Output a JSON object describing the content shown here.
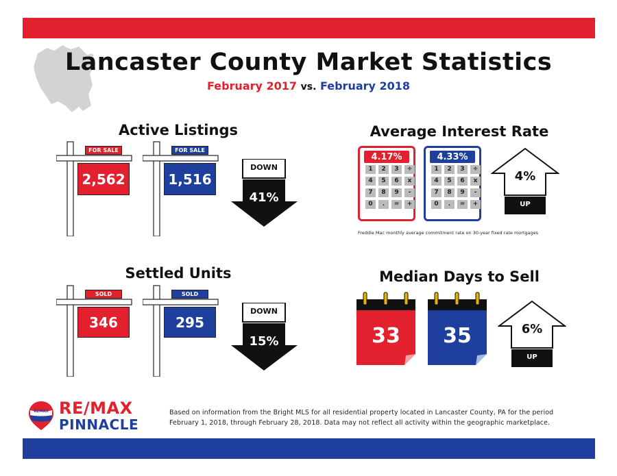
{
  "colors": {
    "red": "#e2202e",
    "blue": "#1f3f9f",
    "dark": "#111111",
    "gray": "#d3d3d3"
  },
  "header": {
    "title": "Lancaster County Market Statistics",
    "subtitle_before": "February 2017",
    "subtitle_vs": "vs.",
    "subtitle_after": "February 2018"
  },
  "active_listings": {
    "title": "Active Listings",
    "sign_label_1": "FOR SALE",
    "sign_label_2": "FOR SALE",
    "value_2017": "2,562",
    "value_2018": "1,516",
    "direction": "DOWN",
    "change": "41%"
  },
  "interest_rate": {
    "title": "Average Interest Rate",
    "value_2017": "4.17%",
    "value_2018": "4.33%",
    "change": "4%",
    "direction": "UP",
    "note": "Freddie Mac monthly average commitment rate on 30-year fixed rate mortgages",
    "keys": [
      "1",
      "2",
      "3",
      "÷",
      "4",
      "5",
      "6",
      "x",
      "7",
      "8",
      "9",
      "-",
      "0",
      ".",
      "=",
      "+"
    ]
  },
  "settled_units": {
    "title": "Settled Units",
    "sign_label_1": "SOLD",
    "sign_label_2": "SOLD",
    "value_2017": "346",
    "value_2018": "295",
    "direction": "DOWN",
    "change": "15%"
  },
  "days_to_sell": {
    "title": "Median Days to Sell",
    "value_2017": "33",
    "value_2018": "35",
    "change": "6%",
    "direction": "UP"
  },
  "footer": {
    "brand_top": "RE/MAX",
    "brand_bottom": "PINNACLE",
    "balloon_text": "RE/MAX",
    "line1": "Based on information from the Bright MLS for all residential property located in Lancaster County, PA for the period",
    "line2": "February 1, 2018, through February 28, 2018.  Data may not reflect all activity within the geographic marketplace."
  }
}
